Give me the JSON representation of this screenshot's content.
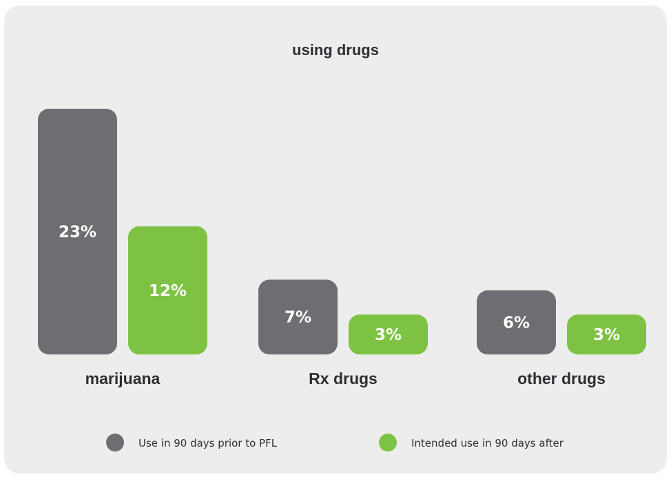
{
  "chart_data": {
    "type": "bar",
    "title": "using drugs",
    "categories": [
      "marijuana",
      "Rx drugs",
      "other drugs"
    ],
    "series": [
      {
        "name": "Use in 90 days prior to PFL",
        "color": "#6d6e71",
        "values": [
          23,
          7,
          6
        ],
        "labels": [
          "23%",
          "7%",
          "6%"
        ]
      },
      {
        "name": "Intended use in 90 days after",
        "color": "#7dc242",
        "values": [
          12,
          3,
          3
        ],
        "labels": [
          "12%",
          "3%",
          "3%"
        ]
      }
    ],
    "xlabel": "",
    "ylabel": "",
    "ylim": [
      0,
      23
    ],
    "grid": false,
    "legend_position": "bottom"
  }
}
